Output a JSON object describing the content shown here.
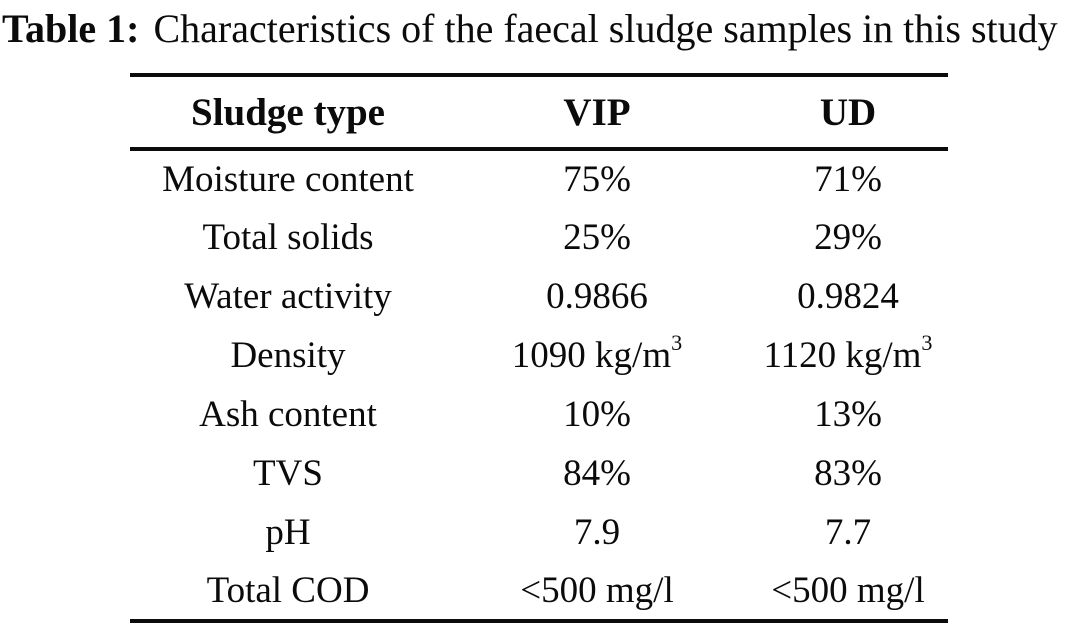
{
  "caption": {
    "label": "Table 1:",
    "text": "Characteristics of the faecal sludge samples in this study"
  },
  "table": {
    "columns": [
      "Sludge type",
      "VIP",
      "UD"
    ],
    "rows": [
      [
        "Moisture content",
        "75%",
        "71%"
      ],
      [
        "Total solids",
        "25%",
        "29%"
      ],
      [
        "Water activity",
        "0.9866",
        "0.9824"
      ],
      [
        "Density",
        "1090 kg/m^3",
        "1120 kg/m^3"
      ],
      [
        "Ash content",
        "10%",
        "13%"
      ],
      [
        "TVS",
        "84%",
        "83%"
      ],
      [
        "pH",
        "7.9",
        "7.7"
      ],
      [
        "Total COD",
        "<500 mg/l",
        "<500 mg/l"
      ]
    ]
  },
  "colors": {
    "text": "#0b0b0b",
    "rule": "#0b0b0b",
    "background": "#ffffff"
  }
}
